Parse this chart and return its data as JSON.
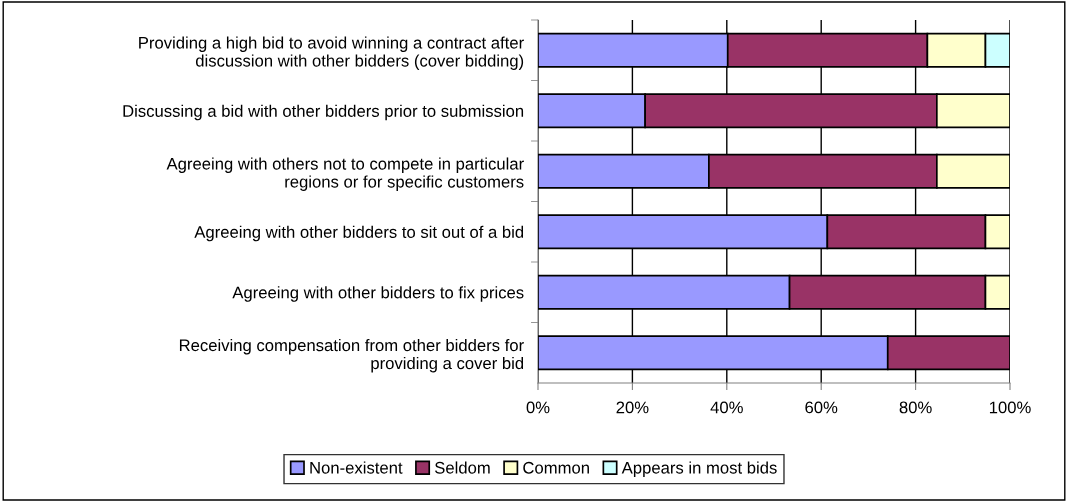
{
  "chart_data": {
    "type": "bar",
    "orientation": "horizontal",
    "stacked": true,
    "categories": [
      "Providing a high bid to avoid winning a contract after\ndiscussion with other bidders (cover bidding)",
      "Discussing a bid with other bidders prior to submission",
      "Agreeing with others not to compete in particular\nregions or for specific customers",
      "Agreeing with other bidders to sit out of a bid",
      "Agreeing with other bidders to fix prices",
      "Receiving compensation from other bidders for\nproviding a cover bid"
    ],
    "series": [
      {
        "name": "Non-existent",
        "color": "#9999ff",
        "values": [
          40.2,
          22.7,
          36.2,
          61.3,
          53.3,
          74.1
        ]
      },
      {
        "name": "Seldom",
        "color": "#993366",
        "values": [
          42.3,
          61.8,
          48.3,
          33.5,
          41.5,
          25.9
        ]
      },
      {
        "name": "Common",
        "color": "#ffffcc",
        "values": [
          12.3,
          15.5,
          15.5,
          5.2,
          5.2,
          null
        ]
      },
      {
        "name": "Appears in most bids",
        "color": "#ccffff",
        "values": [
          5.2,
          null,
          null,
          null,
          null,
          null
        ]
      }
    ],
    "xlim": [
      0,
      100
    ],
    "xticks": [
      {
        "value": 0,
        "label": "0%"
      },
      {
        "value": 20,
        "label": "20%"
      },
      {
        "value": 40,
        "label": "40%"
      },
      {
        "value": 60,
        "label": "60%"
      },
      {
        "value": 80,
        "label": "80%"
      },
      {
        "value": 100,
        "label": "100%"
      }
    ],
    "grid": "x",
    "legend": "bottom"
  }
}
